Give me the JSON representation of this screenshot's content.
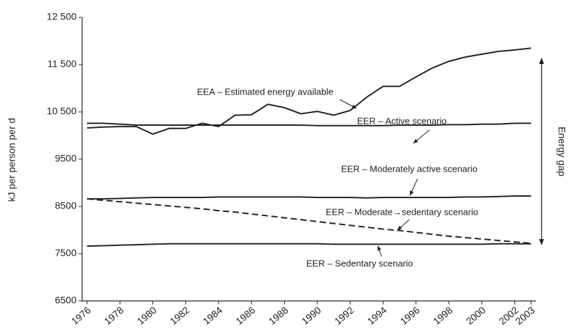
{
  "chart_data": {
    "type": "line",
    "y_label": "kJ per person per d",
    "x": [
      1976,
      1977,
      1978,
      1979,
      1980,
      1981,
      1982,
      1983,
      1984,
      1985,
      1986,
      1987,
      1988,
      1989,
      1990,
      1991,
      1992,
      1993,
      1994,
      1995,
      1996,
      1997,
      1998,
      1999,
      2000,
      2001,
      2002,
      2003
    ],
    "xlim": [
      1976,
      2003
    ],
    "xticks": [
      1976,
      1978,
      1980,
      1982,
      1984,
      1986,
      1988,
      1990,
      1992,
      1994,
      1996,
      1998,
      2000,
      2002,
      2003
    ],
    "ylim": [
      6500,
      12500
    ],
    "yticks": [
      6500,
      7500,
      8500,
      9500,
      {
        "value": 10500,
        "label": "10 500"
      },
      {
        "value": 11500,
        "label": "11 500"
      },
      {
        "value": 12500,
        "label": "12 500"
      }
    ],
    "grid": false,
    "series": [
      {
        "name": "EEA – Estimated energy available",
        "color": "#222222",
        "style": "solid",
        "values": [
          10160,
          10180,
          10190,
          10190,
          10030,
          10150,
          10150,
          10260,
          10190,
          10430,
          10440,
          10660,
          10590,
          10460,
          10510,
          10430,
          10530,
          10810,
          11040,
          11040,
          11240,
          11430,
          11570,
          11660,
          11720,
          11780,
          11810,
          11850
        ]
      },
      {
        "name": "EER – Active scenario",
        "color": "#222222",
        "style": "solid",
        "values": [
          10260,
          10260,
          10240,
          10220,
          10220,
          10220,
          10220,
          10220,
          10220,
          10220,
          10220,
          10220,
          10220,
          10220,
          10210,
          10210,
          10210,
          10210,
          10210,
          10220,
          10220,
          10220,
          10230,
          10230,
          10240,
          10240,
          10260,
          10260
        ]
      },
      {
        "name": "EER – Moderately active scenario",
        "color": "#222222",
        "style": "solid",
        "values": [
          8660,
          8660,
          8670,
          8680,
          8690,
          8690,
          8690,
          8690,
          8700,
          8700,
          8700,
          8700,
          8700,
          8700,
          8690,
          8690,
          8690,
          8680,
          8690,
          8690,
          8690,
          8690,
          8690,
          8700,
          8700,
          8710,
          8720,
          8720
        ]
      },
      {
        "name": "EER – Moderate→sedentary scenario",
        "color": "#222222",
        "style": "dashed",
        "values": [
          8660,
          8630,
          8600,
          8570,
          8540,
          8510,
          8480,
          8450,
          8410,
          8380,
          8340,
          8300,
          8260,
          8220,
          8180,
          8140,
          8100,
          8060,
          8020,
          7990,
          7950,
          7910,
          7870,
          7840,
          7810,
          7780,
          7750,
          7720
        ]
      },
      {
        "name": "EER – Sedentary scenario",
        "color": "#222222",
        "style": "solid",
        "values": [
          7660,
          7670,
          7680,
          7690,
          7700,
          7710,
          7710,
          7710,
          7710,
          7710,
          7710,
          7710,
          7710,
          7710,
          7710,
          7700,
          7700,
          7700,
          7700,
          7700,
          7700,
          7700,
          7700,
          7700,
          7700,
          7710,
          7710,
          7710
        ]
      }
    ],
    "annotations": [
      "Energy gap"
    ]
  }
}
